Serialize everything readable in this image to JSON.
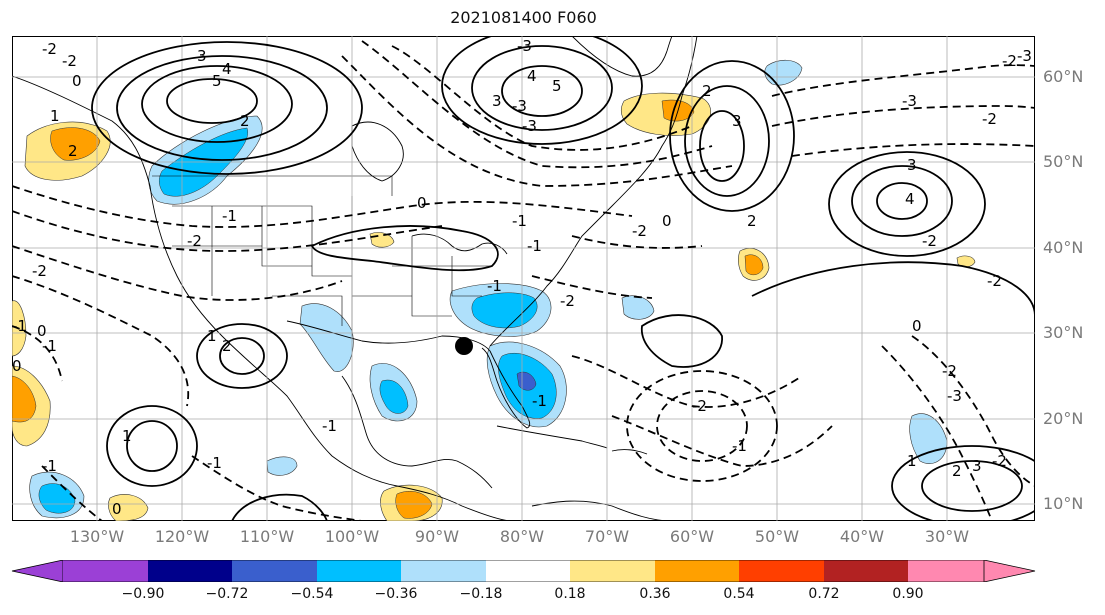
{
  "title": "2021081400 F060",
  "lat_labels": [
    "60°N",
    "50°N",
    "40°N",
    "30°N",
    "20°N",
    "10°N"
  ],
  "lon_labels": [
    "130°W",
    "120°W",
    "110°W",
    "100°W",
    "90°W",
    "80°W",
    "70°W",
    "60°W",
    "50°W",
    "40°W",
    "30°W"
  ],
  "contour_labels": [
    "-2",
    "-2",
    "0",
    "1",
    "2",
    "3",
    "5",
    "4",
    "2",
    "-2",
    "-2",
    "-3",
    "-3",
    "-3",
    "3",
    "4",
    "5",
    "2",
    "3",
    "-3",
    "-2",
    "0",
    "0",
    "-1",
    "2",
    "3",
    "4",
    "-1",
    "0",
    "-2",
    "-2",
    "-1",
    "-2",
    "-1",
    "0",
    "0",
    "-2",
    "-1",
    "-2",
    "2",
    "-1",
    "-2",
    "-3",
    "-3",
    "-1",
    "-2",
    "1",
    "2",
    "3",
    "-2",
    "-1",
    "-1",
    "-1",
    "1",
    "1",
    "0",
    "-1"
  ],
  "colorbar": {
    "ticks": [
      "−0.90",
      "−0.72",
      "−0.54",
      "−0.36",
      "−0.18",
      "0.18",
      "0.36",
      "0.54",
      "0.72",
      "0.90"
    ],
    "colors": {
      "lt_-0.90": "#9b40d6",
      "-0.90_-0.72": "#00008b",
      "-0.72_-0.54": "#3a5fcd",
      "-0.54_-0.36": "#00bfff",
      "-0.36_-0.18": "#afe0fb",
      "-0.18_0.18": "#ffffff",
      "0.18_0.36": "#ffe787",
      "0.36_0.54": "#ffa000",
      "0.54_0.72": "#ff3f00",
      "0.72_0.90": "#b22222",
      "gt_0.90": "#ff88b0"
    }
  },
  "marker": {
    "label": "",
    "lon": -86,
    "lat": 28.5
  }
}
